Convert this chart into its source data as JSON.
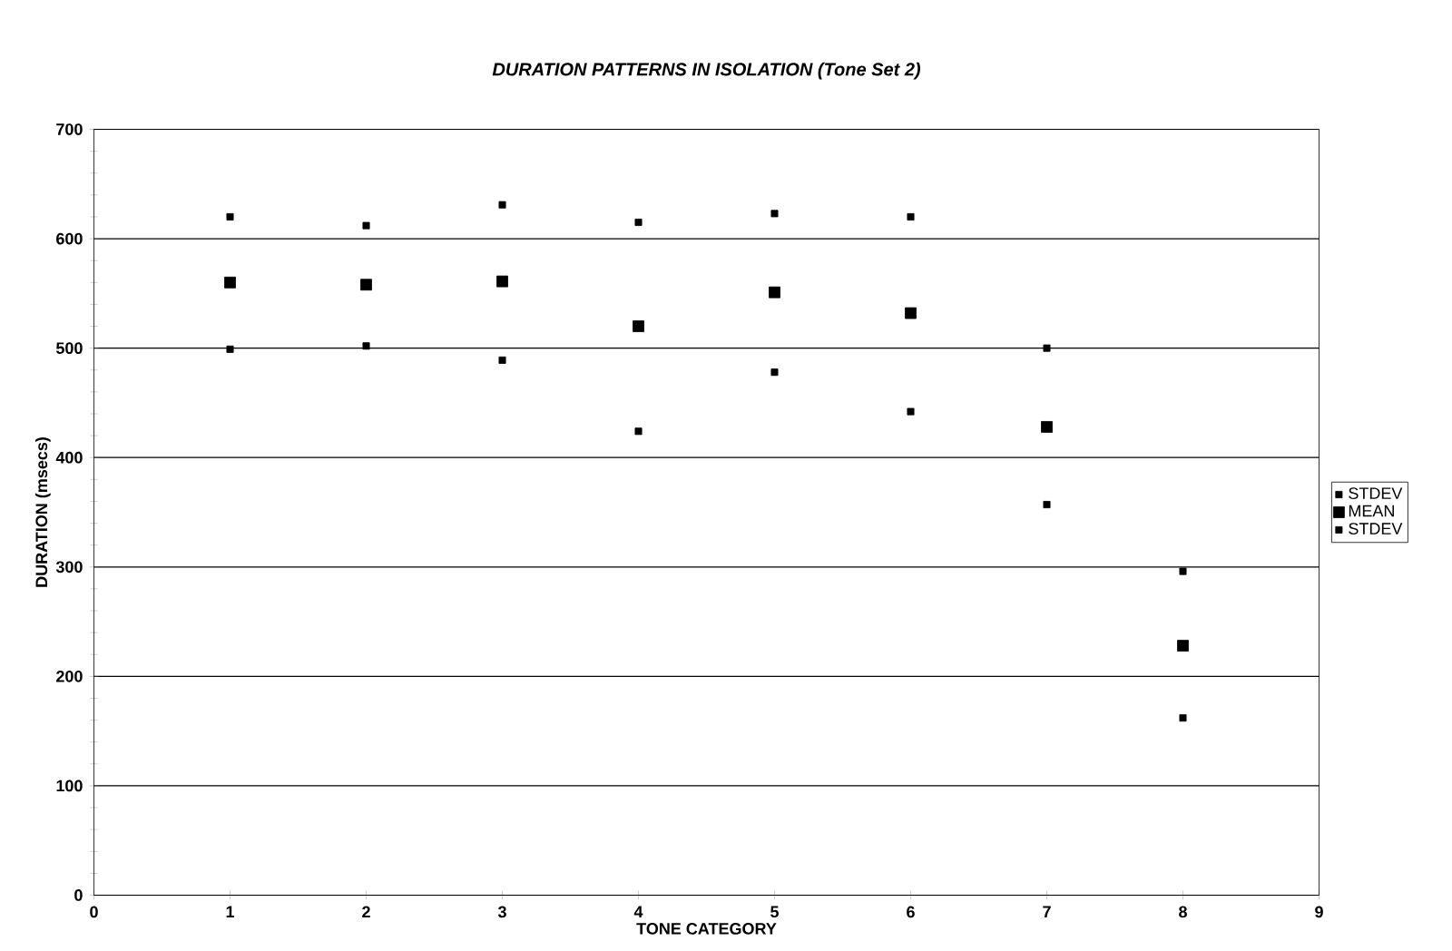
{
  "chart_data": {
    "type": "scatter",
    "title": "DURATION PATTERNS IN ISOLATION (Tone Set 2)",
    "xlabel": "TONE CATEGORY",
    "ylabel": "DURATION (msecs)",
    "x": [
      1,
      2,
      3,
      4,
      5,
      6,
      7,
      8
    ],
    "series": [
      {
        "name": "STDEV",
        "color": "#000000",
        "values": [
          620,
          612,
          631,
          615,
          623,
          620,
          500,
          296
        ]
      },
      {
        "name": "MEAN",
        "color": "#000000",
        "marker": "square",
        "values": [
          560,
          558,
          561,
          520,
          551,
          532,
          428,
          228
        ]
      },
      {
        "name": "STDEV",
        "color": "#000000",
        "values": [
          499,
          502,
          489,
          424,
          478,
          442,
          357,
          162
        ]
      }
    ],
    "xlim": [
      0,
      9
    ],
    "xticks": [
      0,
      1,
      2,
      3,
      4,
      5,
      6,
      7,
      8,
      9
    ],
    "ylim": [
      0,
      700
    ],
    "yticks": [
      0,
      100,
      200,
      300,
      400,
      500,
      600,
      700
    ],
    "grid": "y",
    "legend": "right",
    "marker": "square"
  }
}
